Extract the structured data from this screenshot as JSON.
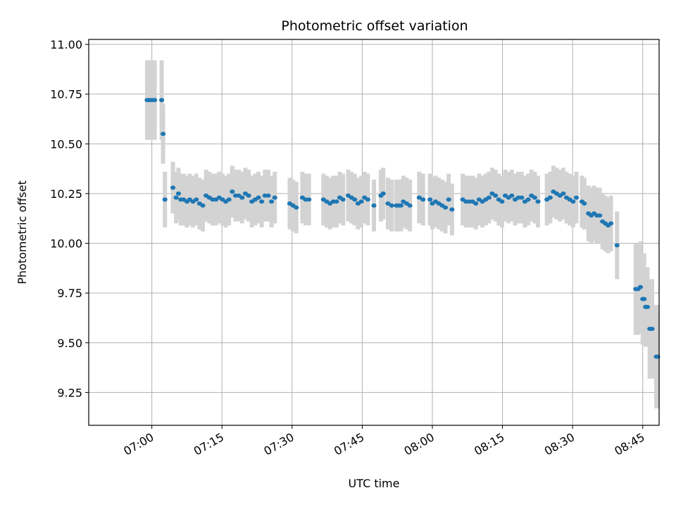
{
  "chart_data": {
    "type": "scatter",
    "title": "Photometric offset variation",
    "xlabel": "UTC time",
    "ylabel": "Photometric offset",
    "x_unit": "minutes after 07:00 UTC",
    "xlim": [
      -13.5,
      108.5
    ],
    "ylim": [
      9.085,
      11.025
    ],
    "x_ticks": [
      0,
      15,
      30,
      45,
      60,
      75,
      90,
      105
    ],
    "x_tick_labels": [
      "07:00",
      "07:15",
      "07:30",
      "07:45",
      "08:00",
      "08:15",
      "08:30",
      "08:45"
    ],
    "y_ticks": [
      9.25,
      9.5,
      9.75,
      10.0,
      10.25,
      10.5,
      10.75,
      11.0
    ],
    "y_tick_labels": [
      "9.25",
      "9.50",
      "9.75",
      "10.00",
      "10.25",
      "10.50",
      "10.75",
      "11.00"
    ],
    "grid": true,
    "colors": {
      "marker": "#1f77b4",
      "errorbar": "#d3d3d3",
      "grid": "#b0b0b0"
    },
    "series": [
      {
        "points": [
          [
            -1.0,
            10.72,
            0.2
          ],
          [
            -0.5,
            10.72,
            0.2
          ],
          [
            0.0,
            10.72,
            0.2
          ],
          [
            0.6,
            10.72,
            0.2
          ],
          [
            2.1,
            10.72,
            0.2
          ],
          [
            2.4,
            10.55,
            0.15
          ],
          [
            2.8,
            10.22,
            0.14
          ],
          [
            4.5,
            10.28,
            0.13
          ],
          [
            5.2,
            10.23,
            0.13
          ],
          [
            5.7,
            10.25,
            0.13
          ],
          [
            6.2,
            10.22,
            0.13
          ],
          [
            6.8,
            10.22,
            0.13
          ],
          [
            7.5,
            10.21,
            0.13
          ],
          [
            8.1,
            10.22,
            0.13
          ],
          [
            8.8,
            10.21,
            0.13
          ],
          [
            9.5,
            10.22,
            0.13
          ],
          [
            10.2,
            10.2,
            0.13
          ],
          [
            10.9,
            10.19,
            0.13
          ],
          [
            11.6,
            10.24,
            0.13
          ],
          [
            12.3,
            10.23,
            0.13
          ],
          [
            13.0,
            10.22,
            0.13
          ],
          [
            13.7,
            10.22,
            0.13
          ],
          [
            14.4,
            10.23,
            0.13
          ],
          [
            15.1,
            10.22,
            0.13
          ],
          [
            15.8,
            10.21,
            0.13
          ],
          [
            16.5,
            10.22,
            0.13
          ],
          [
            17.2,
            10.26,
            0.13
          ],
          [
            17.9,
            10.24,
            0.13
          ],
          [
            18.6,
            10.24,
            0.13
          ],
          [
            19.3,
            10.23,
            0.13
          ],
          [
            20.0,
            10.25,
            0.13
          ],
          [
            20.7,
            10.24,
            0.13
          ],
          [
            21.4,
            10.21,
            0.13
          ],
          [
            22.1,
            10.22,
            0.13
          ],
          [
            22.8,
            10.23,
            0.13
          ],
          [
            23.5,
            10.21,
            0.13
          ],
          [
            24.2,
            10.24,
            0.13
          ],
          [
            24.9,
            10.24,
            0.13
          ],
          [
            25.6,
            10.21,
            0.13
          ],
          [
            26.3,
            10.23,
            0.13
          ],
          [
            29.5,
            10.2,
            0.13
          ],
          [
            30.2,
            10.19,
            0.13
          ],
          [
            30.9,
            10.18,
            0.13
          ],
          [
            32.2,
            10.23,
            0.13
          ],
          [
            32.9,
            10.22,
            0.13
          ],
          [
            33.6,
            10.22,
            0.13
          ],
          [
            36.7,
            10.22,
            0.13
          ],
          [
            37.4,
            10.21,
            0.13
          ],
          [
            38.1,
            10.2,
            0.13
          ],
          [
            38.8,
            10.21,
            0.13
          ],
          [
            39.5,
            10.21,
            0.13
          ],
          [
            40.2,
            10.23,
            0.13
          ],
          [
            40.9,
            10.22,
            0.13
          ],
          [
            42.0,
            10.24,
            0.13
          ],
          [
            42.7,
            10.23,
            0.13
          ],
          [
            43.4,
            10.22,
            0.13
          ],
          [
            44.1,
            10.2,
            0.13
          ],
          [
            44.8,
            10.21,
            0.13
          ],
          [
            45.5,
            10.23,
            0.13
          ],
          [
            46.2,
            10.22,
            0.13
          ],
          [
            47.5,
            10.19,
            0.13
          ],
          [
            49.0,
            10.24,
            0.13
          ],
          [
            49.5,
            10.25,
            0.13
          ],
          [
            50.5,
            10.2,
            0.13
          ],
          [
            51.3,
            10.19,
            0.13
          ],
          [
            52.3,
            10.19,
            0.13
          ],
          [
            52.8,
            10.19,
            0.13
          ],
          [
            53.3,
            10.19,
            0.13
          ],
          [
            53.8,
            10.21,
            0.13
          ],
          [
            54.5,
            10.2,
            0.13
          ],
          [
            55.2,
            10.19,
            0.13
          ],
          [
            57.2,
            10.23,
            0.13
          ],
          [
            58.0,
            10.22,
            0.13
          ],
          [
            59.5,
            10.22,
            0.13
          ],
          [
            60.0,
            10.2,
            0.13
          ],
          [
            60.7,
            10.21,
            0.13
          ],
          [
            61.4,
            10.2,
            0.13
          ],
          [
            62.1,
            10.19,
            0.13
          ],
          [
            62.8,
            10.18,
            0.13
          ],
          [
            63.5,
            10.22,
            0.13
          ],
          [
            64.2,
            10.17,
            0.13
          ],
          [
            66.5,
            10.22,
            0.13
          ],
          [
            67.2,
            10.21,
            0.13
          ],
          [
            67.9,
            10.21,
            0.13
          ],
          [
            68.6,
            10.21,
            0.13
          ],
          [
            69.3,
            10.2,
            0.13
          ],
          [
            70.0,
            10.22,
            0.13
          ],
          [
            70.7,
            10.21,
            0.13
          ],
          [
            71.4,
            10.22,
            0.13
          ],
          [
            72.1,
            10.23,
            0.13
          ],
          [
            72.8,
            10.25,
            0.13
          ],
          [
            73.5,
            10.24,
            0.13
          ],
          [
            74.2,
            10.22,
            0.13
          ],
          [
            74.9,
            10.21,
            0.13
          ],
          [
            75.6,
            10.24,
            0.13
          ],
          [
            76.3,
            10.23,
            0.13
          ],
          [
            77.0,
            10.24,
            0.13
          ],
          [
            77.7,
            10.22,
            0.13
          ],
          [
            78.4,
            10.23,
            0.13
          ],
          [
            79.1,
            10.23,
            0.13
          ],
          [
            79.8,
            10.21,
            0.13
          ],
          [
            80.5,
            10.22,
            0.13
          ],
          [
            81.2,
            10.24,
            0.13
          ],
          [
            81.9,
            10.23,
            0.13
          ],
          [
            82.6,
            10.21,
            0.13
          ],
          [
            84.5,
            10.22,
            0.13
          ],
          [
            85.2,
            10.23,
            0.13
          ],
          [
            85.9,
            10.26,
            0.13
          ],
          [
            86.6,
            10.25,
            0.13
          ],
          [
            87.3,
            10.24,
            0.13
          ],
          [
            88.0,
            10.25,
            0.13
          ],
          [
            88.7,
            10.23,
            0.13
          ],
          [
            89.4,
            10.22,
            0.13
          ],
          [
            90.1,
            10.21,
            0.13
          ],
          [
            90.8,
            10.23,
            0.13
          ],
          [
            92.0,
            10.21,
            0.13
          ],
          [
            92.5,
            10.2,
            0.13
          ],
          [
            93.4,
            10.15,
            0.14
          ],
          [
            94.0,
            10.14,
            0.14
          ],
          [
            94.6,
            10.15,
            0.14
          ],
          [
            95.2,
            10.14,
            0.14
          ],
          [
            95.8,
            10.14,
            0.14
          ],
          [
            96.4,
            10.11,
            0.14
          ],
          [
            97.0,
            10.1,
            0.14
          ],
          [
            97.6,
            10.09,
            0.14
          ],
          [
            98.2,
            10.1,
            0.14
          ],
          [
            99.5,
            9.99,
            0.17
          ],
          [
            103.5,
            9.77,
            0.23
          ],
          [
            104.0,
            9.77,
            0.23
          ],
          [
            104.5,
            9.78,
            0.23
          ],
          [
            105.0,
            9.72,
            0.23
          ],
          [
            105.3,
            9.72,
            0.23
          ],
          [
            105.6,
            9.68,
            0.2
          ],
          [
            106.0,
            9.68,
            0.2
          ],
          [
            106.5,
            9.57,
            0.25
          ],
          [
            107.0,
            9.57,
            0.25
          ],
          [
            107.9,
            9.43,
            0.26
          ],
          [
            108.2,
            9.43,
            0.26
          ]
        ]
      }
    ]
  }
}
